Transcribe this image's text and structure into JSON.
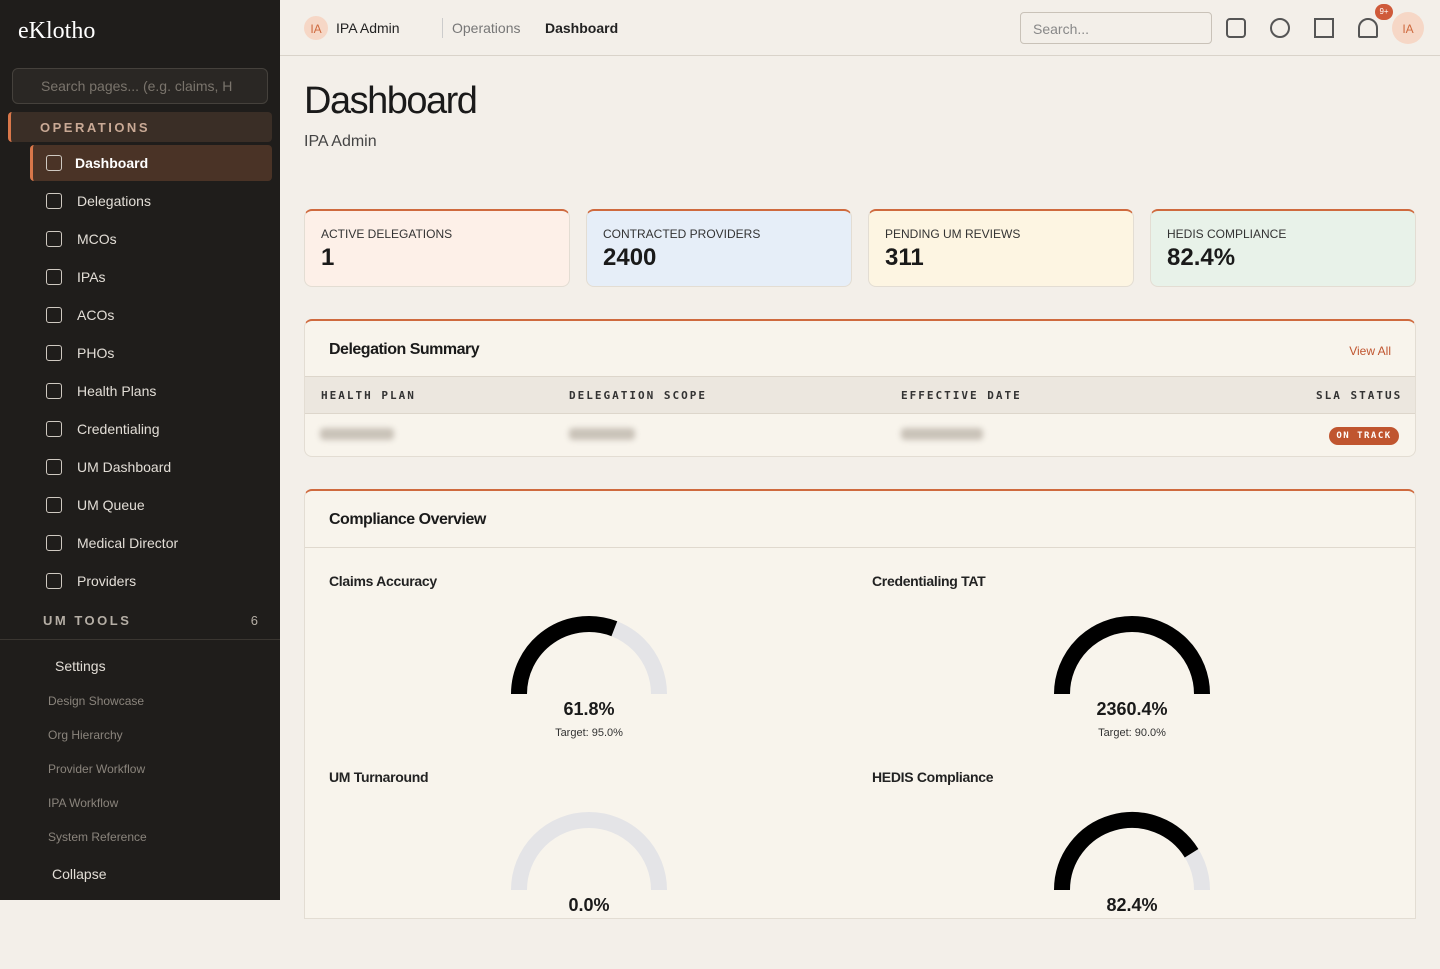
{
  "sidebar": {
    "brand": "eKlotho",
    "search_placeholder": "Search pages... (e.g. claims, H",
    "section": "OPERATIONS",
    "nav": [
      "Dashboard",
      "Delegations",
      "MCOs",
      "IPAs",
      "ACOs",
      "PHOs",
      "Health Plans",
      "Credentialing",
      "UM Dashboard",
      "UM Queue",
      "Medical Director",
      "Providers"
    ],
    "um_tools": {
      "label": "UM TOOLS",
      "count": "6"
    },
    "settings": "Settings",
    "links": [
      "Design Showcase",
      "Org Hierarchy",
      "Provider Workflow",
      "IPA Workflow",
      "System Reference"
    ],
    "collapse": "Collapse"
  },
  "header": {
    "avatar": "IA",
    "role": "IPA Admin",
    "breadcrumb": [
      "Operations",
      "Dashboard"
    ],
    "search_placeholder": "Search...",
    "badge": "9+",
    "user": "IA"
  },
  "page": {
    "title": "Dashboard",
    "subtitle": "IPA Admin"
  },
  "stats": [
    {
      "label": "ACTIVE DELEGATIONS",
      "value": "1",
      "color": "#fdf0e8"
    },
    {
      "label": "CONTRACTED PROVIDERS",
      "value": "2400",
      "color": "#e6eef8"
    },
    {
      "label": "PENDING UM REVIEWS",
      "value": "311",
      "color": "#fdf5e2"
    },
    {
      "label": "HEDIS COMPLIANCE",
      "value": "82.4%",
      "color": "#e8f2e9"
    }
  ],
  "delegation": {
    "title": "Delegation Summary",
    "action": "View All",
    "columns": [
      "HEALTH PLAN",
      "DELEGATION SCOPE",
      "EFFECTIVE DATE",
      "SLA STATUS"
    ],
    "status": "ON TRACK"
  },
  "compliance": {
    "title": "Compliance Overview",
    "gauges": [
      {
        "title": "Claims Accuracy",
        "value": 61.8,
        "value_label": "61.8%",
        "target": "Target: 95.0%"
      },
      {
        "title": "Credentialing TAT",
        "value": 2360.4,
        "value_label": "2360.4%",
        "target": "Target: 90.0%"
      },
      {
        "title": "UM Turnaround",
        "value": 0,
        "value_label": "0.0%",
        "target": ""
      },
      {
        "title": "HEDIS Compliance",
        "value": 82.4,
        "value_label": "82.4%",
        "target": ""
      }
    ]
  }
}
